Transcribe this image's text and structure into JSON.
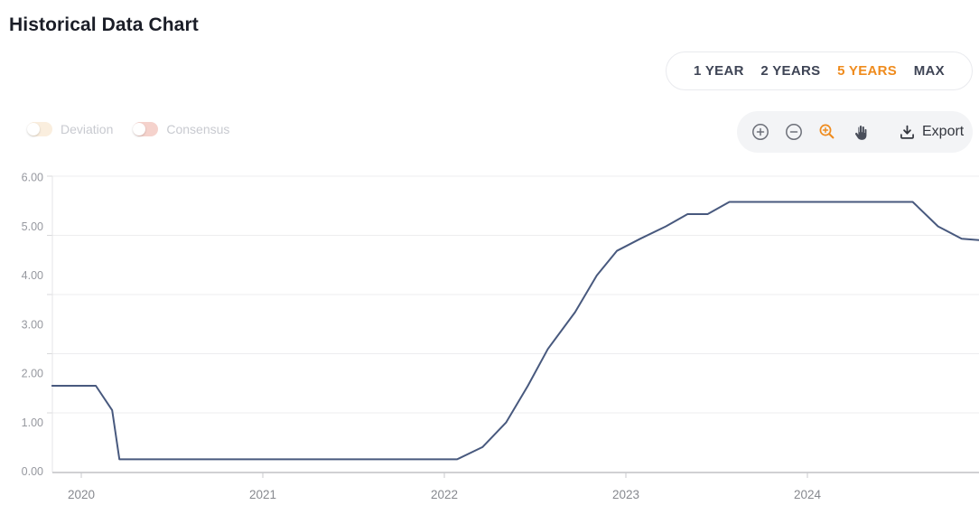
{
  "page": {
    "title": "Historical Data Chart",
    "background": "#ffffff",
    "accent_color": "#ef8b1d"
  },
  "range_selector": {
    "options": [
      {
        "label": "1 YEAR",
        "active": false
      },
      {
        "label": "2 YEARS",
        "active": false
      },
      {
        "label": "5 YEARS",
        "active": true
      },
      {
        "label": "MAX",
        "active": false
      }
    ],
    "active_color": "#ef8b1d",
    "text_color": "#3e4455"
  },
  "series_toggles": [
    {
      "label": "Deviation",
      "state": "off",
      "track_color": "#faeede"
    },
    {
      "label": "Consensus",
      "state": "off",
      "track_color": "#f5d2cc"
    }
  ],
  "toolbar": {
    "tools": [
      {
        "name": "zoom-in",
        "active": false
      },
      {
        "name": "zoom-out",
        "active": false
      },
      {
        "name": "zoom-selection",
        "active": true
      },
      {
        "name": "pan",
        "active": false
      }
    ],
    "active_color": "#ef8b1d",
    "icon_color": "#6d7079",
    "export_label": "Export"
  },
  "chart_data": {
    "type": "line",
    "title": "Historical Data Chart",
    "line_color": "#48597e",
    "grid": true,
    "legend": "none",
    "x_ticks": [
      "2020",
      "2021",
      "2022",
      "2023",
      "2024"
    ],
    "y_ticks": [
      "6.00",
      "5.00",
      "4.00",
      "3.00",
      "2.00",
      "1.00",
      "0.00"
    ],
    "ylim": [
      0,
      6
    ],
    "xlim_years": [
      2019.84,
      2024.95
    ],
    "points": [
      [
        2019.84,
        1.75
      ],
      [
        2020.08,
        1.75
      ],
      [
        2020.17,
        1.25
      ],
      [
        2020.21,
        0.25
      ],
      [
        2022.07,
        0.25
      ],
      [
        2022.21,
        0.5
      ],
      [
        2022.34,
        1.0
      ],
      [
        2022.46,
        1.75
      ],
      [
        2022.57,
        2.5
      ],
      [
        2022.72,
        3.25
      ],
      [
        2022.84,
        4.0
      ],
      [
        2022.95,
        4.5
      ],
      [
        2023.08,
        4.75
      ],
      [
        2023.22,
        5.0
      ],
      [
        2023.34,
        5.25
      ],
      [
        2023.45,
        5.25
      ],
      [
        2023.57,
        5.5
      ],
      [
        2024.58,
        5.5
      ],
      [
        2024.72,
        5.0
      ],
      [
        2024.85,
        4.75
      ],
      [
        2024.95,
        4.72
      ]
    ]
  }
}
